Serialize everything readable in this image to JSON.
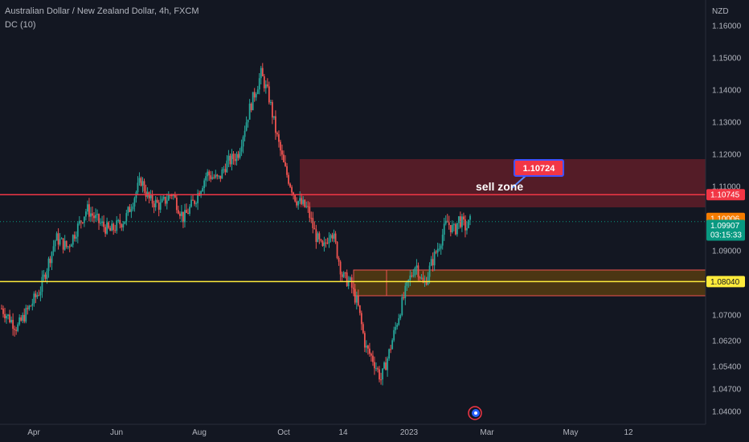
{
  "header": {
    "symbol_title": "Australian Dollar / New Zealand Dollar, 4h, FXCM",
    "indicator": "DC (10)",
    "currency": "NZD"
  },
  "colors": {
    "background": "#131722",
    "up": "#26a69a",
    "down": "#ef5350",
    "sell_zone": "#6b1f2a",
    "support_zone": "#5a3f10",
    "resistance_line": "#f23645",
    "support_line": "#ffeb3b",
    "last_price": "#089981",
    "ask": "#f57c00"
  },
  "chart_data": {
    "type": "candlestick",
    "ylim": [
      1.036,
      1.168
    ],
    "x_tick_labels": [
      "Apr",
      "Jun",
      "Aug",
      "Oct",
      "14",
      "2023",
      "Mar",
      "May",
      "12"
    ],
    "y_tick_labels": [
      "1.16000",
      "1.15000",
      "1.14000",
      "1.13000",
      "1.12000",
      "1.11000",
      "1.09000",
      "1.07000",
      "1.06200",
      "1.05400",
      "1.04700",
      "1.04000"
    ],
    "y_tick_values": [
      1.16,
      1.15,
      1.14,
      1.13,
      1.12,
      1.11,
      1.09,
      1.07,
      1.062,
      1.054,
      1.047,
      1.04
    ],
    "price_path": [
      [
        0,
        1.072
      ],
      [
        4,
        1.066
      ],
      [
        7,
        1.072
      ],
      [
        10,
        1.078
      ],
      [
        14,
        1.094
      ],
      [
        17,
        1.091
      ],
      [
        22,
        1.103
      ],
      [
        25,
        1.099
      ],
      [
        28,
        1.096
      ],
      [
        32,
        1.1
      ],
      [
        36,
        1.112
      ],
      [
        38,
        1.106
      ],
      [
        41,
        1.104
      ],
      [
        44,
        1.108
      ],
      [
        47,
        1.1
      ],
      [
        50,
        1.106
      ],
      [
        53,
        1.114
      ],
      [
        56,
        1.112
      ],
      [
        58,
        1.117
      ],
      [
        61,
        1.12
      ],
      [
        64,
        1.134
      ],
      [
        67,
        1.145
      ],
      [
        69,
        1.138
      ],
      [
        71,
        1.126
      ],
      [
        73,
        1.116
      ],
      [
        76,
        1.106
      ],
      [
        79,
        1.103
      ],
      [
        81,
        1.095
      ],
      [
        83,
        1.09
      ],
      [
        85,
        1.097
      ],
      [
        86,
        1.093
      ],
      [
        88,
        1.082
      ],
      [
        90,
        1.08
      ],
      [
        92,
        1.073
      ],
      [
        94,
        1.06
      ],
      [
        96,
        1.056
      ],
      [
        98,
        1.05
      ],
      [
        100,
        1.058
      ],
      [
        103,
        1.072
      ],
      [
        105,
        1.08
      ],
      [
        107,
        1.086
      ],
      [
        109,
        1.079
      ],
      [
        111,
        1.086
      ],
      [
        113,
        1.092
      ],
      [
        115,
        1.099
      ],
      [
        117,
        1.096
      ],
      [
        118,
        1.1
      ],
      [
        120,
        1.097
      ],
      [
        121,
        1.099
      ]
    ],
    "sell_zone": {
      "label": "sell zone",
      "low": 1.1035,
      "high": 1.1185
    },
    "support_zone": {
      "low": 1.076,
      "high": 1.084
    },
    "horizontal_lines": [
      {
        "name": "resistance",
        "value": 1.10745
      },
      {
        "name": "support",
        "value": 1.0804
      }
    ],
    "current_price": 1.09907,
    "ask_price": 1.10006,
    "annotation_price": "1.10724",
    "price_labels": {
      "resistance": "1.10745",
      "ask": "1.10006",
      "last": "1.09907",
      "countdown": "03:15:33",
      "support": "1.08040"
    },
    "grid": false
  }
}
